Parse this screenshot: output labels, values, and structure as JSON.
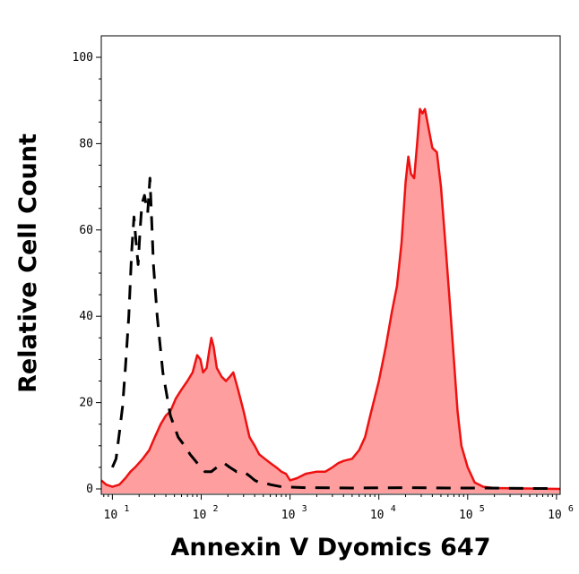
{
  "chart_data": {
    "type": "area",
    "xlabel": "Annexin V Dyomics 647",
    "ylabel": "Relative Cell Count",
    "xscale": "log",
    "xlim": [
      7.5,
      1100000
    ],
    "ylim": [
      0,
      105
    ],
    "grid": false,
    "legend": "none",
    "y_ticks": [
      0,
      20,
      40,
      60,
      80,
      100
    ],
    "x_ticks": [
      {
        "value": 10,
        "base": "10",
        "exp": "1"
      },
      {
        "value": 100,
        "base": "10",
        "exp": "2"
      },
      {
        "value": 1000,
        "base": "10",
        "exp": "3"
      },
      {
        "value": 10000,
        "base": "10",
        "exp": "4"
      },
      {
        "value": 100000,
        "base": "10",
        "exp": "5"
      },
      {
        "value": 1000000,
        "base": "10",
        "exp": "6"
      }
    ],
    "series": [
      {
        "style": "filled-solid",
        "color": "#ee1111",
        "fill": "#ff9e9e",
        "points": [
          [
            7.5,
            2
          ],
          [
            8.5,
            1
          ],
          [
            10,
            0.5
          ],
          [
            12,
            1
          ],
          [
            14,
            2.5
          ],
          [
            16,
            4
          ],
          [
            18,
            5
          ],
          [
            22,
            7
          ],
          [
            26,
            9
          ],
          [
            30,
            12
          ],
          [
            35,
            15
          ],
          [
            40,
            17
          ],
          [
            45,
            18
          ],
          [
            52,
            21
          ],
          [
            60,
            23
          ],
          [
            70,
            25
          ],
          [
            80,
            27
          ],
          [
            90,
            31
          ],
          [
            98,
            30
          ],
          [
            105,
            27
          ],
          [
            115,
            28
          ],
          [
            123,
            32
          ],
          [
            130,
            35
          ],
          [
            138,
            33
          ],
          [
            150,
            28
          ],
          [
            170,
            26
          ],
          [
            190,
            25
          ],
          [
            210,
            26
          ],
          [
            230,
            27
          ],
          [
            260,
            23
          ],
          [
            300,
            18
          ],
          [
            350,
            12
          ],
          [
            400,
            10
          ],
          [
            450,
            8
          ],
          [
            520,
            7
          ],
          [
            600,
            6
          ],
          [
            700,
            5
          ],
          [
            800,
            4
          ],
          [
            900,
            3.5
          ],
          [
            1000,
            2
          ],
          [
            1200,
            2.5
          ],
          [
            1500,
            3.5
          ],
          [
            2000,
            4
          ],
          [
            2500,
            4
          ],
          [
            3000,
            5
          ],
          [
            3500,
            6
          ],
          [
            4000,
            6.5
          ],
          [
            5000,
            7
          ],
          [
            6000,
            9
          ],
          [
            7000,
            12
          ],
          [
            8000,
            17
          ],
          [
            10000,
            25
          ],
          [
            12000,
            33
          ],
          [
            14000,
            41
          ],
          [
            16000,
            47
          ],
          [
            18000,
            57
          ],
          [
            20000,
            71
          ],
          [
            21500,
            77
          ],
          [
            23000,
            73
          ],
          [
            25000,
            72
          ],
          [
            27000,
            80
          ],
          [
            29000,
            88
          ],
          [
            31000,
            87
          ],
          [
            33000,
            88
          ],
          [
            36000,
            84
          ],
          [
            40000,
            79
          ],
          [
            45000,
            78
          ],
          [
            50000,
            70
          ],
          [
            57000,
            55
          ],
          [
            63000,
            43
          ],
          [
            70000,
            30
          ],
          [
            77000,
            18
          ],
          [
            85000,
            10
          ],
          [
            100000,
            5
          ],
          [
            120000,
            1.5
          ],
          [
            150000,
            0.5
          ],
          [
            200000,
            0.2
          ],
          [
            1100000,
            0
          ]
        ]
      },
      {
        "style": "dashed",
        "color": "#000000",
        "points": [
          [
            10,
            5
          ],
          [
            11,
            7
          ],
          [
            12,
            13
          ],
          [
            13,
            19
          ],
          [
            14,
            28
          ],
          [
            15.3,
            40
          ],
          [
            16.5,
            55
          ],
          [
            17.5,
            63
          ],
          [
            18.5,
            57
          ],
          [
            19.5,
            52
          ],
          [
            20.5,
            60
          ],
          [
            21.5,
            66
          ],
          [
            23,
            68
          ],
          [
            25,
            64
          ],
          [
            26.5,
            72
          ],
          [
            27.5,
            64
          ],
          [
            29,
            52
          ],
          [
            32,
            40
          ],
          [
            37,
            27
          ],
          [
            45,
            17
          ],
          [
            55,
            12
          ],
          [
            65,
            10
          ],
          [
            75,
            8
          ],
          [
            90,
            6
          ],
          [
            110,
            4
          ],
          [
            130,
            4
          ],
          [
            150,
            5
          ],
          [
            180,
            6
          ],
          [
            210,
            5
          ],
          [
            250,
            4
          ],
          [
            300,
            4
          ],
          [
            350,
            3
          ],
          [
            400,
            2
          ],
          [
            450,
            1.5
          ],
          [
            500,
            1.5
          ],
          [
            600,
            1
          ],
          [
            800,
            0.5
          ],
          [
            1500,
            0.3
          ],
          [
            5000,
            0.2
          ],
          [
            20000,
            0.3
          ],
          [
            60000,
            0.2
          ],
          [
            150000,
            0.2
          ],
          [
            500000,
            0.1
          ],
          [
            1000000,
            0.1
          ]
        ]
      }
    ]
  }
}
